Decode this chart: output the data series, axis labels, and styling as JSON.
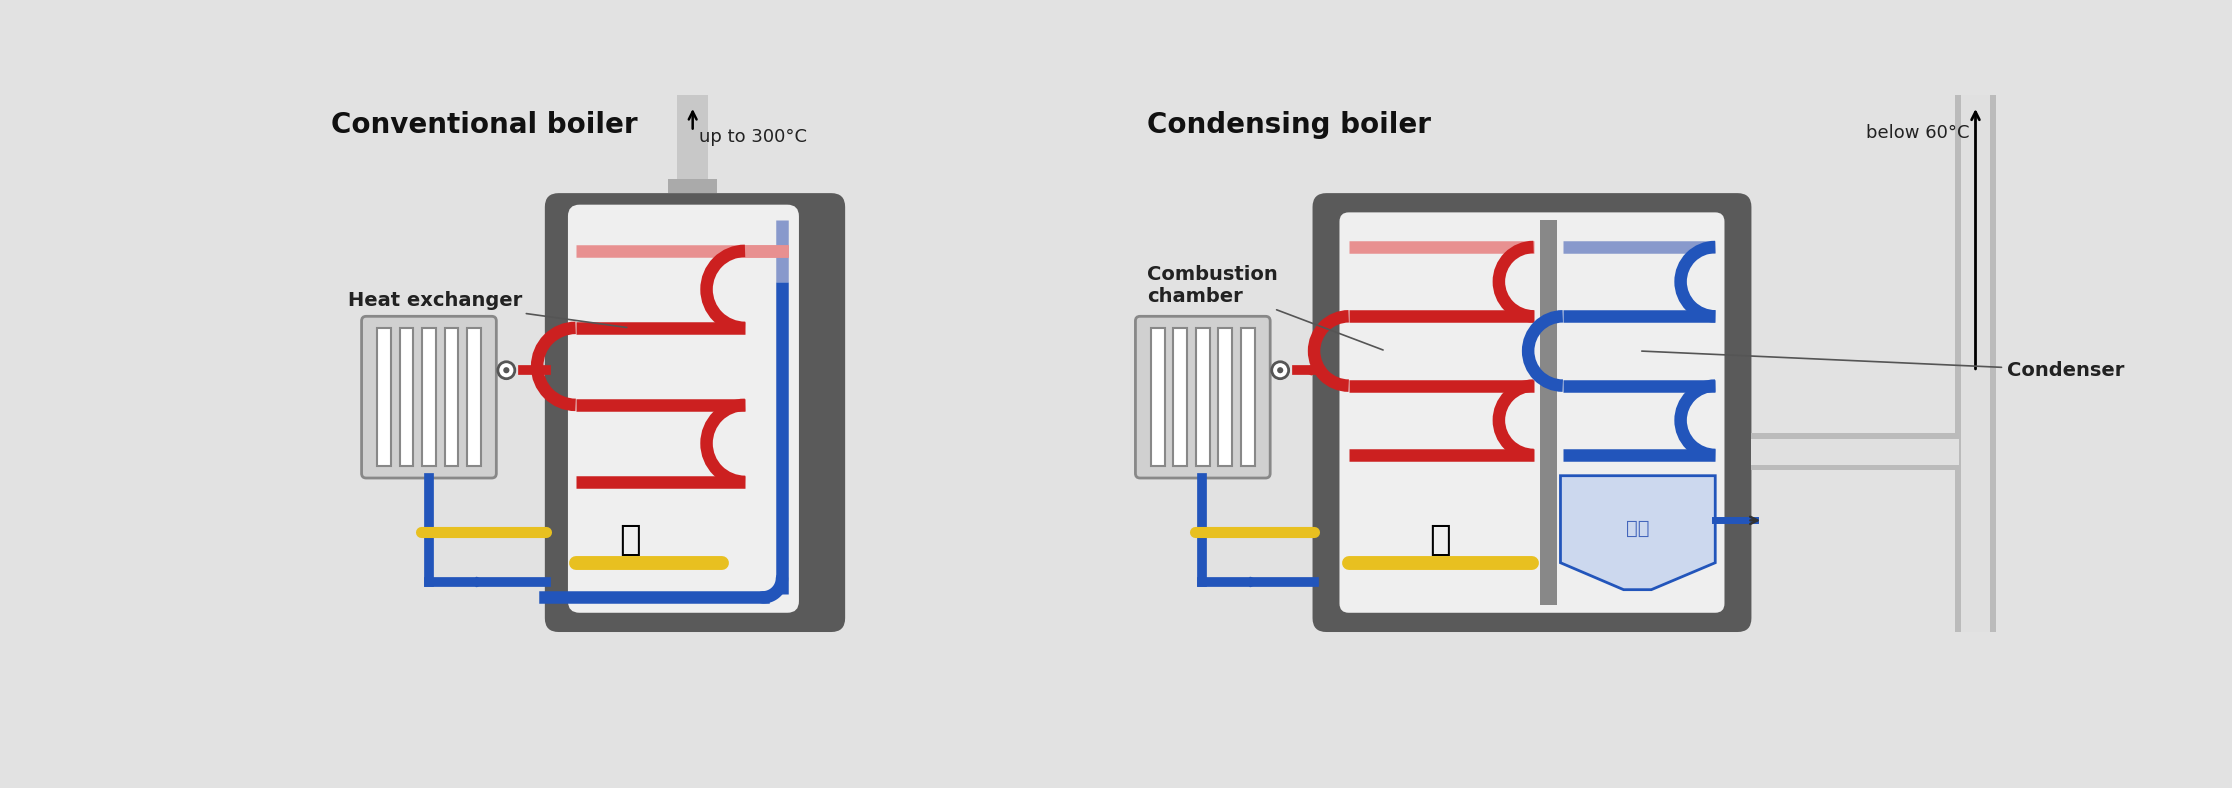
{
  "bg_color": "#e2e2e2",
  "title_left": "Conventional boiler",
  "title_right": "Condensing boiler",
  "label_heat_exchanger": "Heat exchanger",
  "label_combustion": "Combustion\nchamber",
  "label_condenser": "Condenser",
  "label_temp_left": "up to 300°C",
  "label_temp_right": "below 60°C",
  "color_red": "#cc2020",
  "color_red_light": "#e89090",
  "color_blue": "#2255bb",
  "color_blue_light": "#8899cc",
  "color_yellow": "#e8c020",
  "color_gray_dark": "#5a5a5a",
  "color_gray_mid": "#888888",
  "color_gray_light": "#cccccc",
  "color_inner": "#efefef",
  "color_radiator": "#d0d0d0"
}
